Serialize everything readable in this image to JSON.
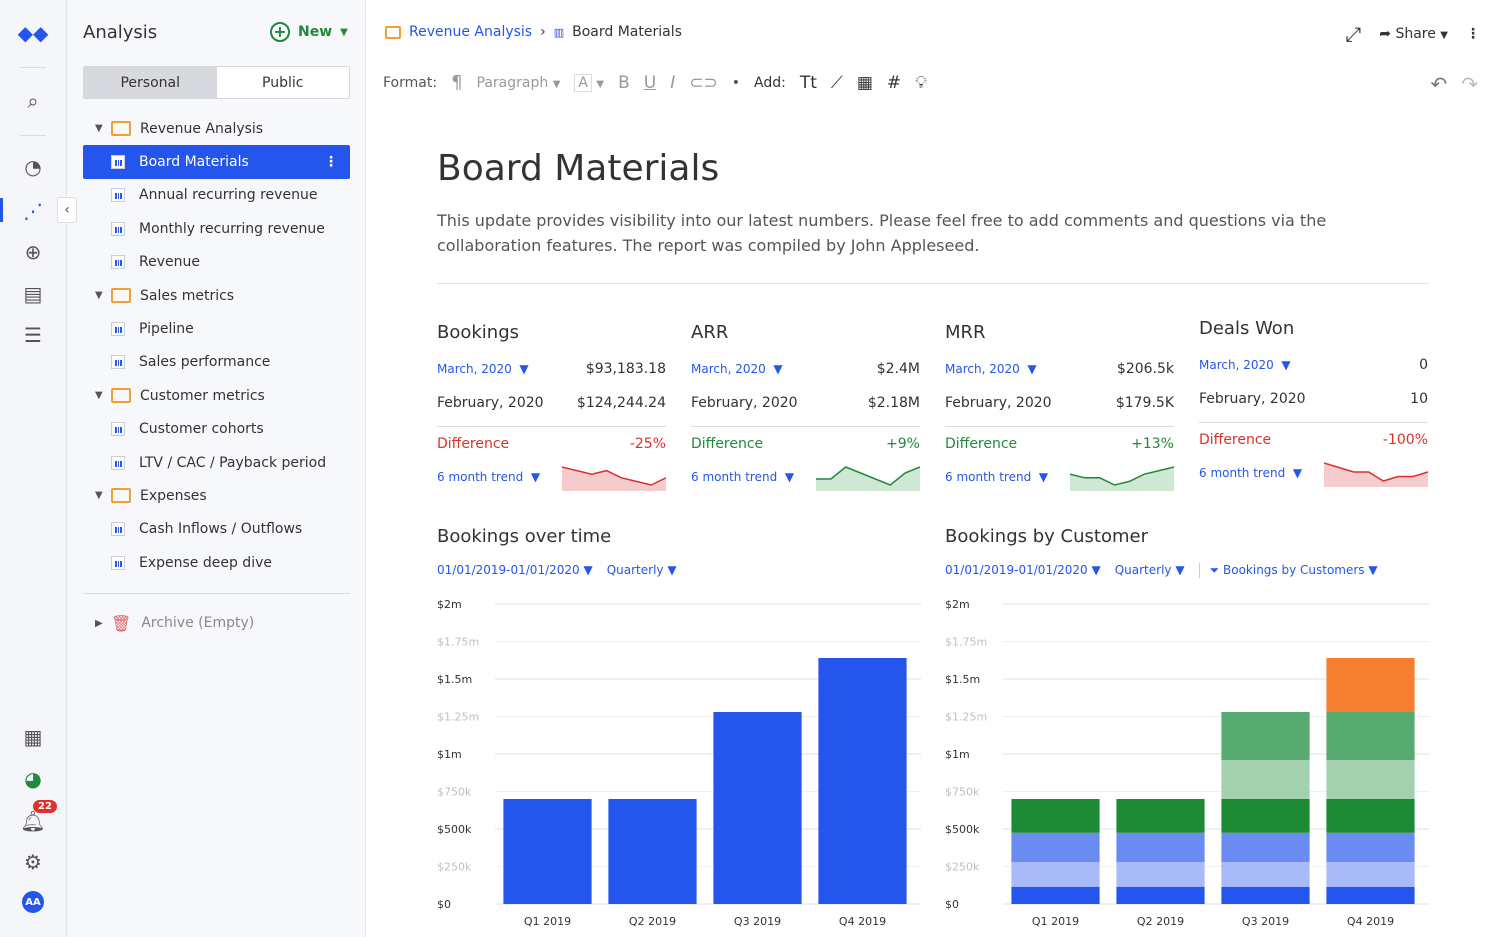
{
  "rail": {
    "notification_count": "22",
    "avatar": "AA"
  },
  "sidebar": {
    "title": "Analysis",
    "new_label": "New",
    "tabs": [
      "Personal",
      "Public"
    ],
    "tree": [
      {
        "type": "folder",
        "label": "Revenue Analysis"
      },
      {
        "type": "doc",
        "label": "Board Materials",
        "selected": true
      },
      {
        "type": "doc",
        "label": "Annual recurring revenue"
      },
      {
        "type": "doc",
        "label": "Monthly recurring revenue"
      },
      {
        "type": "doc",
        "label": "Revenue"
      },
      {
        "type": "folder",
        "label": "Sales metrics"
      },
      {
        "type": "doc",
        "label": "Pipeline"
      },
      {
        "type": "doc",
        "label": "Sales performance"
      },
      {
        "type": "folder",
        "label": "Customer metrics"
      },
      {
        "type": "doc",
        "label": "Customer cohorts"
      },
      {
        "type": "doc",
        "label": "LTV / CAC / Payback period"
      },
      {
        "type": "folder",
        "label": "Expenses"
      },
      {
        "type": "doc",
        "label": "Cash Inflows / Outflows"
      },
      {
        "type": "doc",
        "label": "Expense deep dive"
      }
    ],
    "archive": "Archive (Empty)"
  },
  "header": {
    "breadcrumb": [
      "Revenue Analysis",
      "Board Materials"
    ],
    "share": "Share"
  },
  "toolbar": {
    "format": "Format:",
    "paragraph": "Paragraph",
    "add": "Add:"
  },
  "doc": {
    "title": "Board Materials",
    "description": "This update provides visibility into our latest numbers. Please feel free to add comments and questions via the collaboration features. The report was compiled by John Appleseed."
  },
  "metrics": [
    {
      "title": "Bookings",
      "period": "March, 2020",
      "value": "$93,183.18",
      "prev_label": "February, 2020",
      "prev_value": "$124,244.24",
      "diff_label": "Difference",
      "diff": "-25%",
      "trend": "6 month trend",
      "trend_dir": "down",
      "spark": [
        6,
        5,
        4,
        5,
        3,
        2,
        1,
        3
      ]
    },
    {
      "title": "ARR",
      "period": "March, 2020",
      "value": "$2.4M",
      "prev_label": "February, 2020",
      "prev_value": "$2.18M",
      "diff_label": "Difference",
      "diff": "+9%",
      "trend": "6 month trend",
      "trend_dir": "up",
      "spark": [
        3,
        3,
        5,
        4,
        3,
        2,
        4,
        5
      ]
    },
    {
      "title": "MRR",
      "period": "March, 2020",
      "value": "$206.5k",
      "prev_label": "February, 2020",
      "prev_value": "$179.5K",
      "diff_label": "Difference",
      "diff": "+13%",
      "trend": "6 month trend",
      "trend_dir": "up",
      "spark": [
        4,
        3,
        3,
        1,
        2,
        4,
        5,
        6
      ]
    },
    {
      "title": "Deals Won",
      "period": "March, 2020",
      "value": "0",
      "prev_label": "February, 2020",
      "prev_value": "10",
      "diff_label": "Difference",
      "diff": "-100%",
      "trend": "6 month trend",
      "trend_dir": "down",
      "spark": [
        6,
        5,
        4,
        4,
        2,
        3,
        3,
        4
      ]
    }
  ],
  "colors": {
    "accent": "#2456ee",
    "positive": "#1e8a3a",
    "negative": "#d9322a"
  },
  "chart_data": [
    {
      "type": "bar",
      "title": "Bookings over time",
      "date_range": "01/01/2019-01/01/2020",
      "granularity": "Quarterly",
      "categories": [
        "Q1 2019",
        "Q2 2019",
        "Q3 2019",
        "Q4 2019"
      ],
      "values": [
        700000,
        700000,
        1280000,
        1640000
      ],
      "yticks": [
        "$0",
        "$250k",
        "$500k",
        "$750k",
        "$1m",
        "$1.25m",
        "$1.5m",
        "$1.75m",
        "$2m"
      ],
      "ylim": [
        0,
        2000000
      ],
      "grid": true,
      "color": "#2456ee"
    },
    {
      "type": "bar",
      "stacked": true,
      "title": "Bookings by Customer",
      "date_range": "01/01/2019-01/01/2020",
      "granularity": "Quarterly",
      "filter": "Bookings by Customers",
      "categories": [
        "Q1 2019",
        "Q2 2019",
        "Q3 2019",
        "Q4 2019"
      ],
      "series": [
        {
          "color": "#2456ee",
          "values": [
            115000,
            115000,
            115000,
            115000
          ]
        },
        {
          "color": "#a8baf7",
          "values": [
            165000,
            165000,
            165000,
            165000
          ]
        },
        {
          "color": "#6a8cf2",
          "values": [
            195000,
            195000,
            195000,
            195000
          ]
        },
        {
          "color": "#1e8a36",
          "values": [
            225000,
            225000,
            225000,
            225000
          ]
        },
        {
          "color": "#a3d0ae",
          "values": [
            0,
            0,
            260000,
            260000
          ]
        },
        {
          "color": "#58ab70",
          "values": [
            0,
            0,
            320000,
            320000
          ]
        },
        {
          "color": "#f77f31",
          "values": [
            0,
            0,
            0,
            360000
          ]
        }
      ],
      "yticks": [
        "$0",
        "$250k",
        "$500k",
        "$750k",
        "$1m",
        "$1.25m",
        "$1.5m",
        "$1.75m",
        "$2m"
      ],
      "ylim": [
        0,
        2000000
      ],
      "grid": true
    }
  ]
}
